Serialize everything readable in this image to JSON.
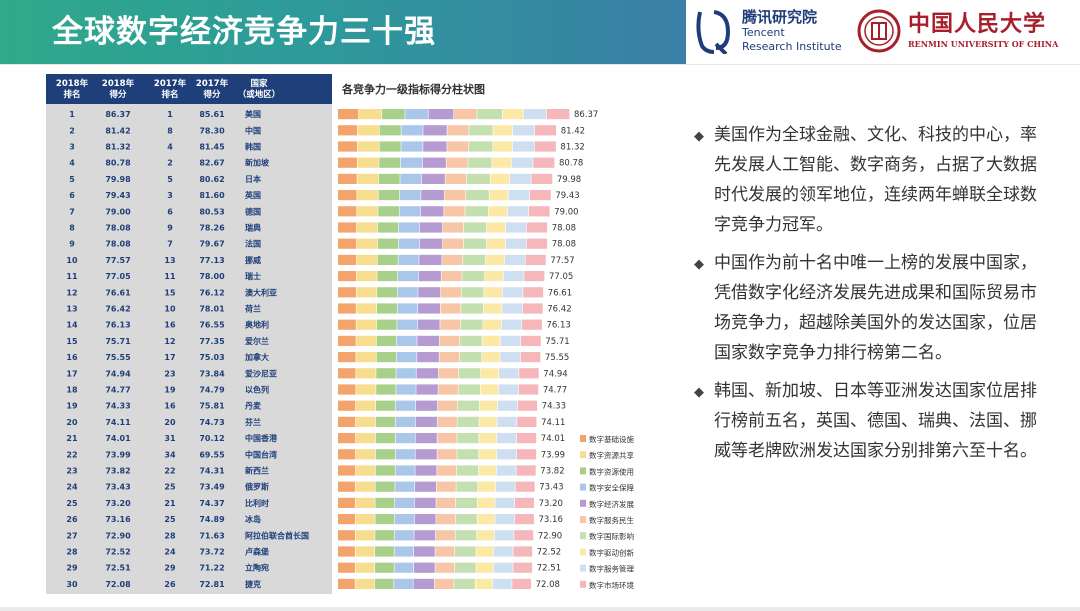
{
  "header": {
    "title": "全球数字经济竞争力三十强",
    "logo_tencent_cn": "腾讯研究院",
    "logo_tencent_en1": "Tencent",
    "logo_tencent_en2": "Research Institute",
    "logo_renmin_cn": "中国人民大学",
    "logo_renmin_en": "RENMIN UNIVERSITY OF CHINA"
  },
  "table": {
    "headers": [
      "2018年\n排名",
      "2018年\n得分",
      "2017年\n排名",
      "2017年\n得分",
      "国家\n（或地区）"
    ]
  },
  "chart_data": {
    "type": "bar",
    "stacked": true,
    "orientation": "horizontal",
    "title": "各竞争力一级指标得分柱状图",
    "categories": [
      "美国",
      "中国",
      "韩国",
      "新加坡",
      "日本",
      "英国",
      "德国",
      "瑞典",
      "法国",
      "挪威",
      "瑞士",
      "澳大利亚",
      "荷兰",
      "奥地利",
      "爱尔兰",
      "加拿大",
      "爱沙尼亚",
      "以色列",
      "丹麦",
      "芬兰",
      "中国香港",
      "中国台湾",
      "新西兰",
      "俄罗斯",
      "比利时",
      "冰岛",
      "阿拉伯联合酋长国",
      "卢森堡",
      "立陶宛",
      "捷克"
    ],
    "rank_2018": [
      1,
      2,
      3,
      4,
      5,
      6,
      7,
      8,
      9,
      10,
      11,
      12,
      13,
      14,
      15,
      16,
      17,
      18,
      19,
      20,
      21,
      22,
      23,
      24,
      25,
      26,
      27,
      28,
      29,
      30
    ],
    "score_2018": [
      86.37,
      81.42,
      81.32,
      80.78,
      79.98,
      79.43,
      79.0,
      78.08,
      78.08,
      77.57,
      77.05,
      76.61,
      76.42,
      76.13,
      75.71,
      75.55,
      74.94,
      74.77,
      74.33,
      74.11,
      74.01,
      73.99,
      73.82,
      73.43,
      73.2,
      73.16,
      72.9,
      72.52,
      72.51,
      72.08
    ],
    "rank_2017": [
      1,
      8,
      4,
      2,
      5,
      3,
      6,
      9,
      7,
      13,
      11,
      15,
      10,
      16,
      12,
      17,
      23,
      19,
      16,
      20,
      31,
      34,
      22,
      25,
      21,
      25,
      28,
      24,
      29,
      26
    ],
    "score_2017": [
      85.61,
      78.3,
      81.45,
      82.67,
      80.62,
      81.6,
      80.53,
      78.26,
      79.67,
      77.13,
      78.0,
      76.12,
      78.01,
      76.55,
      77.35,
      75.03,
      73.84,
      74.79,
      75.81,
      74.73,
      70.12,
      69.55,
      74.31,
      73.49,
      74.37,
      74.89,
      71.63,
      73.72,
      71.22,
      72.81
    ],
    "score_labels": [
      "86.37",
      "81.42",
      "81.32",
      "80.78",
      "79.98",
      "79.43",
      "79.00",
      "78.08",
      "78.08",
      "77.57",
      "77.05",
      "76.61",
      "76.42",
      "76.13",
      "75.71",
      "75.55",
      "74.94",
      "74.77",
      "74.33",
      "74.11",
      "74.01",
      "73.99",
      "73.82",
      "73.43",
      "73.20",
      "73.16",
      "72.90",
      "72.52",
      "72.51",
      "72.08"
    ],
    "score_2017_labels": [
      "85.61",
      "78.30",
      "81.45",
      "82.67",
      "80.62",
      "81.60",
      "80.53",
      "78.26",
      "79.67",
      "77.13",
      "78.00",
      "76.12",
      "78.01",
      "76.55",
      "77.35",
      "75.03",
      "73.84",
      "74.79",
      "75.81",
      "74.73",
      "70.12",
      "69.55",
      "74.31",
      "73.49",
      "74.37",
      "74.89",
      "71.63",
      "73.72",
      "71.22",
      "72.81"
    ],
    "series": [
      {
        "name": "数字基础设施",
        "color": "#f4a36b"
      },
      {
        "name": "数字资源共享",
        "color": "#f7dd8e"
      },
      {
        "name": "数字资源使用",
        "color": "#a8d08a"
      },
      {
        "name": "数字安全保障",
        "color": "#a9c7e8"
      },
      {
        "name": "数字经济发展",
        "color": "#b69ad2"
      },
      {
        "name": "数字服务民生",
        "color": "#f7c6a6"
      },
      {
        "name": "数字国际影响",
        "color": "#c5e0b0"
      },
      {
        "name": "数字驱动创新",
        "color": "#fce9a6"
      },
      {
        "name": "数字服务管理",
        "color": "#cfdff2"
      },
      {
        "name": "数字市场环境",
        "color": "#f5b7b9"
      }
    ],
    "legend_position": "right",
    "grid": false
  },
  "bullets": [
    "美国作为全球金融、文化、科技的中心，率先发展人工智能、数字商务，占据了大数据时代发展的领军地位，连续两年蝉联全球数字竞争力冠军。",
    "中国作为前十名中唯一上榜的发展中国家，凭借数字化经济发展先进成果和国际贸易市场竞争力，超越除美国外的发达国家，位居国家数字竞争力排行榜第二名。",
    "韩国、新加坡、日本等亚洲发达国家位居排行榜前五名，英国、德国、瑞典、法国、挪威等老牌欧洲发达国家分别排第六至十名。"
  ],
  "bullet_mark": "◆"
}
